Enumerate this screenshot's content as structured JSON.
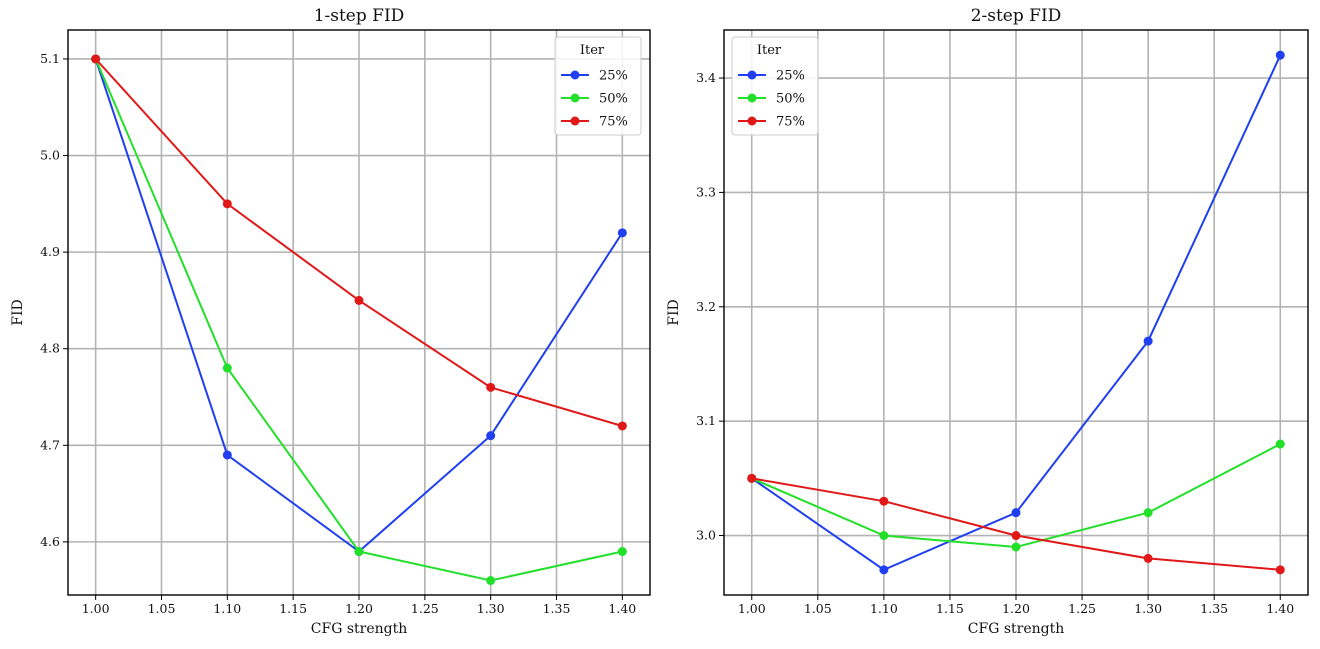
{
  "chart_data": [
    {
      "type": "line",
      "title": "1-step FID",
      "xlabel": "CFG strength",
      "ylabel": "FID",
      "x": [
        1.0,
        1.1,
        1.2,
        1.3,
        1.4
      ],
      "xticks": [
        "1.00",
        "1.05",
        "1.10",
        "1.15",
        "1.20",
        "1.25",
        "1.30",
        "1.35",
        "1.40"
      ],
      "xtick_values": [
        1.0,
        1.05,
        1.1,
        1.15,
        1.2,
        1.25,
        1.3,
        1.35,
        1.4
      ],
      "yticks": [
        "4.6",
        "4.7",
        "4.8",
        "4.9",
        "5.0",
        "5.1"
      ],
      "ytick_values": [
        4.6,
        4.7,
        4.8,
        4.9,
        5.0,
        5.1
      ],
      "xlim": [
        0.979,
        1.421
      ],
      "ylim": [
        4.545,
        5.13
      ],
      "grid": true,
      "legend": {
        "title": "Iter",
        "placement": "top-right"
      },
      "series": [
        {
          "name": "25%",
          "color": "#1f3ff0",
          "values": [
            5.1,
            4.69,
            4.59,
            4.71,
            4.92
          ]
        },
        {
          "name": "50%",
          "color": "#22e02a",
          "values": [
            5.1,
            4.78,
            4.59,
            4.56,
            4.59
          ]
        },
        {
          "name": "75%",
          "color": "#e01818",
          "values": [
            5.1,
            4.95,
            4.85,
            4.76,
            4.72
          ]
        }
      ]
    },
    {
      "type": "line",
      "title": "2-step FID",
      "xlabel": "CFG strength",
      "ylabel": "FID",
      "x": [
        1.0,
        1.1,
        1.2,
        1.3,
        1.4
      ],
      "xticks": [
        "1.00",
        "1.05",
        "1.10",
        "1.15",
        "1.20",
        "1.25",
        "1.30",
        "1.35",
        "1.40"
      ],
      "xtick_values": [
        1.0,
        1.05,
        1.1,
        1.15,
        1.2,
        1.25,
        1.3,
        1.35,
        1.4
      ],
      "yticks": [
        "3.0",
        "3.1",
        "3.2",
        "3.3",
        "3.4"
      ],
      "ytick_values": [
        3.0,
        3.1,
        3.2,
        3.3,
        3.4
      ],
      "xlim": [
        0.979,
        1.421
      ],
      "ylim": [
        2.948,
        3.442
      ],
      "grid": true,
      "legend": {
        "title": "Iter",
        "placement": "top-left"
      },
      "series": [
        {
          "name": "25%",
          "color": "#1f3ff0",
          "values": [
            3.05,
            2.97,
            3.02,
            3.17,
            3.42
          ]
        },
        {
          "name": "50%",
          "color": "#22e02a",
          "values": [
            3.05,
            3.0,
            2.99,
            3.02,
            3.08
          ]
        },
        {
          "name": "75%",
          "color": "#e01818",
          "values": [
            3.05,
            3.03,
            3.0,
            2.98,
            2.97
          ]
        }
      ]
    }
  ]
}
